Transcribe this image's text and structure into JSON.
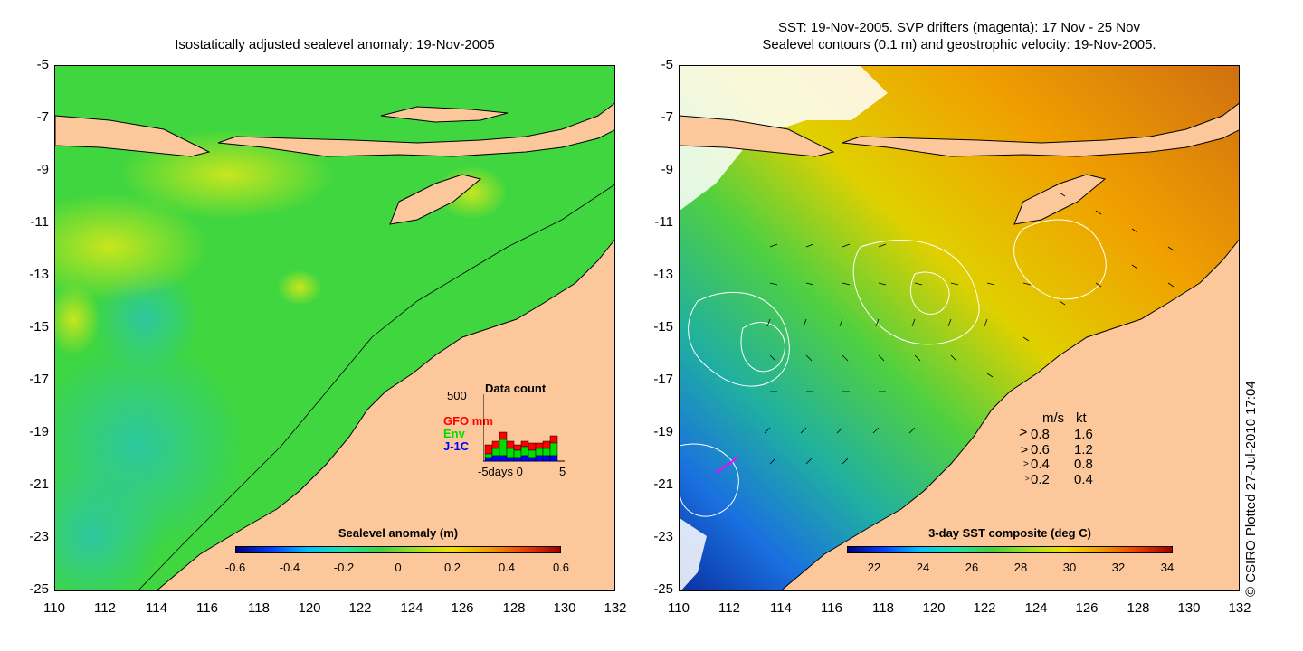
{
  "left": {
    "title": "Isostatically adjusted sealevel anomaly: 19-Nov-2005",
    "yticks": [
      "-5",
      "-7",
      "-9",
      "-11",
      "-13",
      "-15",
      "-17",
      "-19",
      "-21",
      "-23",
      "-25"
    ],
    "xticks": [
      "110",
      "112",
      "114",
      "116",
      "118",
      "120",
      "122",
      "124",
      "126",
      "128",
      "130",
      "132"
    ],
    "colorbar": {
      "label": "Sealevel anomaly (m)",
      "ticks": [
        "-0.6",
        "-0.4",
        "-0.2",
        "0",
        "0.2",
        "0.4",
        "0.6"
      ]
    },
    "inset": {
      "title": "Data count",
      "ymax": "500",
      "series": [
        {
          "name": "GFO mm",
          "color": "#ff0000"
        },
        {
          "name": "Env",
          "color": "#00dd00"
        },
        {
          "name": "J-1C",
          "color": "#0000ff"
        }
      ],
      "xlabel": "-5days 0",
      "xlabel_end": "5"
    }
  },
  "right": {
    "title_line1": "SST: 19-Nov-2005. SVP drifters (magenta): 17 Nov - 25 Nov",
    "title_line2": "Sealevel contours (0.1 m) and geostrophic velocity: 19-Nov-2005.",
    "yticks": [
      "-5",
      "-7",
      "-9",
      "-11",
      "-13",
      "-15",
      "-17",
      "-19",
      "-21",
      "-23",
      "-25"
    ],
    "xticks": [
      "110",
      "112",
      "114",
      "116",
      "118",
      "120",
      "122",
      "124",
      "126",
      "128",
      "130",
      "132"
    ],
    "colorbar": {
      "label": "3-day SST composite (deg C)",
      "ticks": [
        "22",
        "24",
        "26",
        "28",
        "30",
        "32",
        "34"
      ]
    },
    "velocity_legend": {
      "header_ms": "m/s",
      "header_kt": "kt",
      "rows": [
        {
          "ms": "0.8",
          "kt": "1.6"
        },
        {
          "ms": "0.6",
          "kt": "1.2"
        },
        {
          "ms": "0.4",
          "kt": "0.8"
        },
        {
          "ms": "0.2",
          "kt": "0.4"
        }
      ]
    }
  },
  "credit": "© CSIRO Plotted 27-Jul-2010 17:04",
  "colors": {
    "land": "#fcc89b",
    "ssa_green": "#3fd63f",
    "ssa_yellow": "#c8e61e",
    "sst_warm": "#f0a000",
    "sst_cool": "#1a5ad6"
  }
}
